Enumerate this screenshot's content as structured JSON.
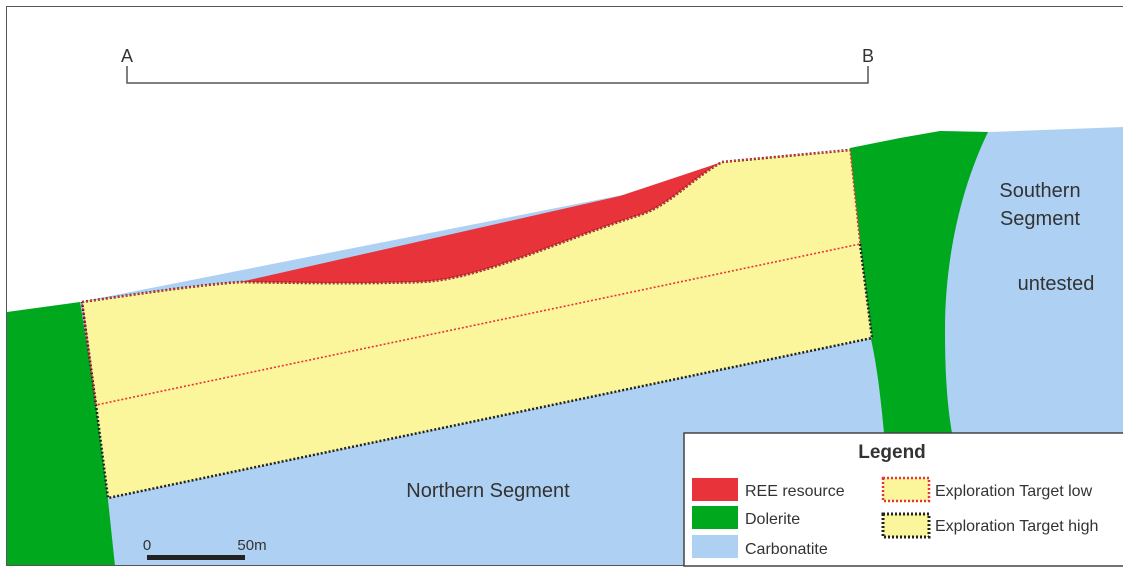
{
  "section": {
    "start_label": "A",
    "end_label": "B"
  },
  "labels": {
    "southern_line1": "Southern",
    "southern_line2": "Segment",
    "untested": "untested",
    "northern": "Northern Segment"
  },
  "scale_bar": {
    "start": "0",
    "end": "50m"
  },
  "legend": {
    "title": "Legend",
    "items": [
      {
        "label": "REE resource",
        "color": "#e8333a"
      },
      {
        "label": "Dolerite",
        "color": "#00a81e"
      },
      {
        "label": "Carbonatite",
        "color": "#aed1f3"
      },
      {
        "label": "Exploration Target low",
        "color": "#fbf59b",
        "border": "#e8333a"
      },
      {
        "label": "Exploration Target high",
        "color": "#fbf59b",
        "border": "#222222"
      }
    ]
  },
  "colors": {
    "ree": "#e8333a",
    "dolerite": "#00a81e",
    "carbonatite": "#aed1f3",
    "target": "#fbf59b"
  }
}
